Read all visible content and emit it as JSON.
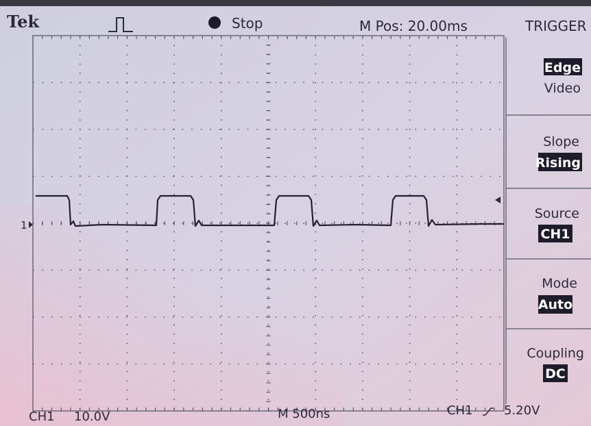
{
  "header": {
    "brand": "Tek",
    "status": "Stop",
    "position": "M Pos: 20.00ms"
  },
  "channel_marker": "1",
  "menu": {
    "title": "TRIGGER",
    "items": [
      {
        "options": [
          "Edge",
          "Video"
        ]
      },
      {
        "label": "Slope",
        "value": "Rising"
      },
      {
        "label": "Source",
        "value": "CH1"
      },
      {
        "label": "Mode",
        "value": "Auto"
      },
      {
        "label": "Coupling",
        "value": "DC"
      }
    ]
  },
  "footer": {
    "channel": "CH1",
    "scale": "10.0V",
    "timebase": "M 500ns",
    "trigger_source": "CH1",
    "trigger_level": "5.20V"
  }
}
